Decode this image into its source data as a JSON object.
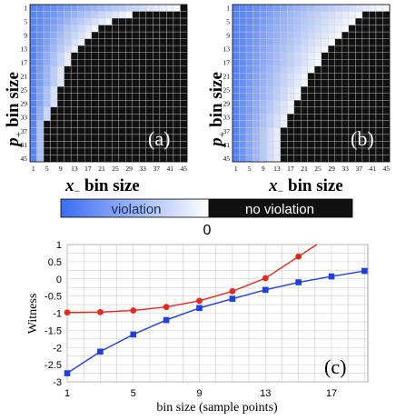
{
  "panel_a": {
    "label": "(a)",
    "xlabel_var": "x",
    "xlabel_sub": "−",
    "xlabel_rest": " bin size",
    "ylabel_var": "p",
    "ylabel_sub": "+",
    "ylabel_rest": " bin size"
  },
  "panel_b": {
    "label": "(b)",
    "xlabel_var": "x",
    "xlabel_sub": "−",
    "xlabel_rest": " bin size",
    "ylabel_var": "p",
    "ylabel_sub": "+",
    "ylabel_rest": " bin size"
  },
  "panel_c": {
    "label": "(c)"
  },
  "colorbar": {
    "violation_label": "violation",
    "no_violation_label": "no violation",
    "zero_label": "0",
    "colors": {
      "violation_strong": "#3a6df0",
      "violation_weak": "#ffffff",
      "no_violation": "#111111"
    }
  },
  "chart_data": [
    {
      "type": "heatmap",
      "name": "(a)",
      "tick_labels": [
        "1",
        "5",
        "9",
        "13",
        "17",
        "21",
        "25",
        "29",
        "33",
        "37",
        "41",
        "45"
      ],
      "note_boundary_row_to_first_violation_free_col": [
        [
          1,
          45
        ],
        [
          3,
          31
        ],
        [
          5,
          25
        ],
        [
          7,
          21
        ],
        [
          9,
          19
        ],
        [
          11,
          17
        ],
        [
          13,
          15
        ],
        [
          15,
          13
        ],
        [
          17,
          13
        ],
        [
          19,
          11
        ],
        [
          21,
          11
        ],
        [
          23,
          11
        ],
        [
          25,
          9
        ],
        [
          27,
          9
        ],
        [
          29,
          9
        ],
        [
          31,
          7
        ],
        [
          33,
          7
        ],
        [
          35,
          5
        ],
        [
          37,
          5
        ],
        [
          39,
          5
        ],
        [
          41,
          5
        ],
        [
          43,
          5
        ],
        [
          45,
          5
        ]
      ]
    },
    {
      "type": "heatmap",
      "name": "(b)",
      "tick_labels": [
        "1",
        "5",
        "9",
        "13",
        "17",
        "21",
        "25",
        "29",
        "33",
        "37",
        "41",
        "45"
      ]
    },
    {
      "type": "line",
      "xlabel": "bin size (sample points)",
      "ylabel": "Witness",
      "xlim": [
        1,
        19.2
      ],
      "ylim": [
        -3,
        1
      ],
      "xticks": [
        1,
        5,
        9,
        13,
        17
      ],
      "yticks": [
        1,
        0.5,
        0,
        -0.5,
        -1,
        -1.5,
        -2,
        -2.5,
        -3
      ],
      "ytick_labels": [
        "1",
        "0.5",
        "0",
        "-0.5",
        "-1",
        "-1.5",
        "-2",
        "-2.5",
        "-3"
      ],
      "grid": true,
      "series": [
        {
          "color": "#e8281e",
          "marker": "circle",
          "x": [
            1,
            3,
            5,
            7,
            9,
            11,
            13,
            15
          ],
          "y": [
            -0.98,
            -0.97,
            -0.92,
            -0.82,
            -0.64,
            -0.36,
            0.02,
            0.65
          ]
        },
        {
          "color": "#1f3fe0",
          "marker": "square",
          "x": [
            1,
            3,
            5,
            7,
            9,
            11,
            13,
            15,
            17,
            19
          ],
          "y": [
            -2.75,
            -2.12,
            -1.62,
            -1.2,
            -0.85,
            -0.58,
            -0.32,
            -0.1,
            0.07,
            0.23
          ]
        }
      ]
    }
  ]
}
